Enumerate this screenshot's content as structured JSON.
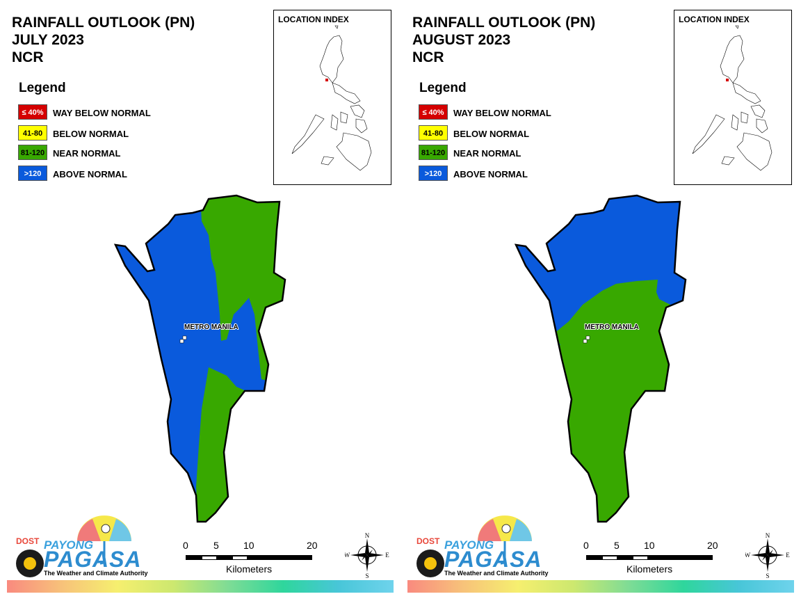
{
  "panels": [
    {
      "title_line1": "RAINFALL OUTLOOK (PN)",
      "title_line2": "JULY 2023",
      "title_line3": "NCR",
      "legend_title": "Legend",
      "legend": [
        {
          "code": "≤ 40%",
          "label": "WAY BELOW NORMAL",
          "color": "#d50000",
          "text_color": "#ffffff"
        },
        {
          "code": "41-80",
          "label": "BELOW NORMAL",
          "color": "#ffff00",
          "text_color": "#000000"
        },
        {
          "code": "81-120",
          "label": "NEAR NORMAL",
          "color": "#38a800",
          "text_color": "#000000"
        },
        {
          "code": ">120",
          "label": "ABOVE NORMAL",
          "color": "#0a5adc",
          "text_color": "#ffffff"
        }
      ],
      "location_index_title": "LOCATION INDEX",
      "city_label": "METRO MANILA",
      "scale_labels": [
        "0",
        "5",
        "10",
        "20"
      ],
      "scale_unit": "Kilometers",
      "compass": {
        "n": "N",
        "s": "S",
        "e": "E",
        "w": "W"
      },
      "logo": {
        "dost": "DOST",
        "payong": "PAYONG",
        "pagasa": "PAGASA",
        "tagline": "The Weather and Climate Authority"
      },
      "outlook_zones": [
        "ABOVE NORMAL",
        "NEAR NORMAL"
      ]
    },
    {
      "title_line1": "RAINFALL OUTLOOK (PN)",
      "title_line2": "AUGUST 2023",
      "title_line3": "NCR",
      "legend_title": "Legend",
      "legend": [
        {
          "code": "≤ 40%",
          "label": "WAY BELOW NORMAL",
          "color": "#d50000",
          "text_color": "#ffffff"
        },
        {
          "code": "41-80",
          "label": "BELOW NORMAL",
          "color": "#ffff00",
          "text_color": "#000000"
        },
        {
          "code": "81-120",
          "label": "NEAR NORMAL",
          "color": "#38a800",
          "text_color": "#000000"
        },
        {
          "code": ">120",
          "label": "ABOVE NORMAL",
          "color": "#0a5adc",
          "text_color": "#ffffff"
        }
      ],
      "location_index_title": "LOCATION INDEX",
      "city_label": "METRO MANILA",
      "scale_labels": [
        "0",
        "5",
        "10",
        "20"
      ],
      "scale_unit": "Kilometers",
      "compass": {
        "n": "N",
        "s": "S",
        "e": "E",
        "w": "W"
      },
      "logo": {
        "dost": "DOST",
        "payong": "PAYONG",
        "pagasa": "PAGASA",
        "tagline": "The Weather and Climate Authority"
      },
      "outlook_zones": [
        "ABOVE NORMAL",
        "NEAR NORMAL"
      ]
    }
  ],
  "colors": {
    "above_normal": "#0a5adc",
    "near_normal": "#38a800",
    "below_normal": "#ffff00",
    "way_below_normal": "#d50000",
    "ncr_location_marker": "#d50000"
  }
}
